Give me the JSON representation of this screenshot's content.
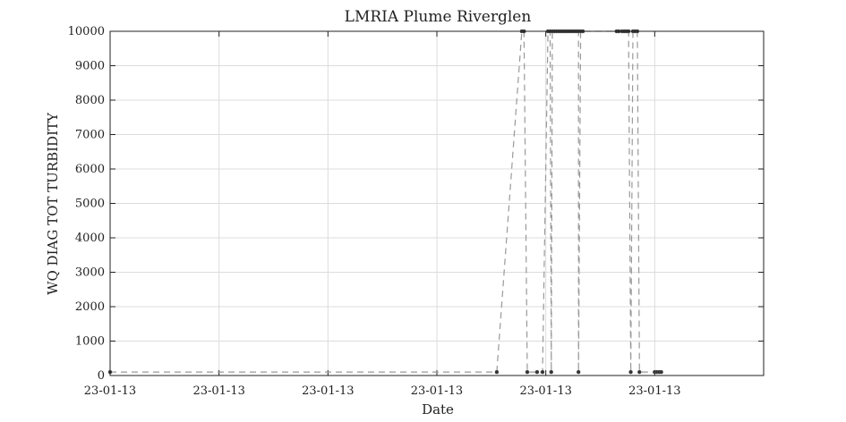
{
  "chart_data": {
    "type": "line",
    "title": "LMRIA Plume Riverglen",
    "xlabel": "Date",
    "ylabel": "WQ DIAG TOT TURBIDITY",
    "x_tick_labels": [
      "23-01-13",
      "23-01-13",
      "23-01-13",
      "23-01-13",
      "23-01-13",
      "23-01-13"
    ],
    "xlim": [
      0,
      6
    ],
    "ylim": [
      0,
      10000
    ],
    "y_ticks": [
      0,
      1000,
      2000,
      3000,
      4000,
      5000,
      6000,
      7000,
      8000,
      9000,
      10000
    ],
    "grid": true,
    "legend": false,
    "series_color": "#999999",
    "marker_color": "#333333",
    "series": [
      {
        "x": [
          0.0,
          3.55,
          3.78,
          3.8,
          3.83,
          3.92,
          3.97,
          4.02,
          4.04,
          4.05,
          4.06,
          4.08,
          4.1,
          4.12,
          4.14,
          4.16,
          4.18,
          4.2,
          4.22,
          4.24,
          4.26,
          4.28,
          4.3,
          4.3,
          4.32,
          4.34,
          4.65,
          4.67,
          4.7,
          4.72,
          4.74,
          4.76,
          4.78,
          4.8,
          4.82,
          4.84,
          4.86,
          5.0,
          5.02,
          5.04,
          5.06
        ],
        "y": [
          100,
          100,
          10000,
          10000,
          100,
          100,
          100,
          10000,
          10000,
          100,
          10000,
          10000,
          10000,
          10000,
          10000,
          10000,
          10000,
          10000,
          10000,
          10000,
          10000,
          10000,
          10000,
          100,
          10000,
          10000,
          10000,
          10000,
          10000,
          10000,
          10000,
          10000,
          100,
          10000,
          10000,
          10000,
          100,
          100,
          100,
          100,
          100
        ]
      }
    ]
  }
}
